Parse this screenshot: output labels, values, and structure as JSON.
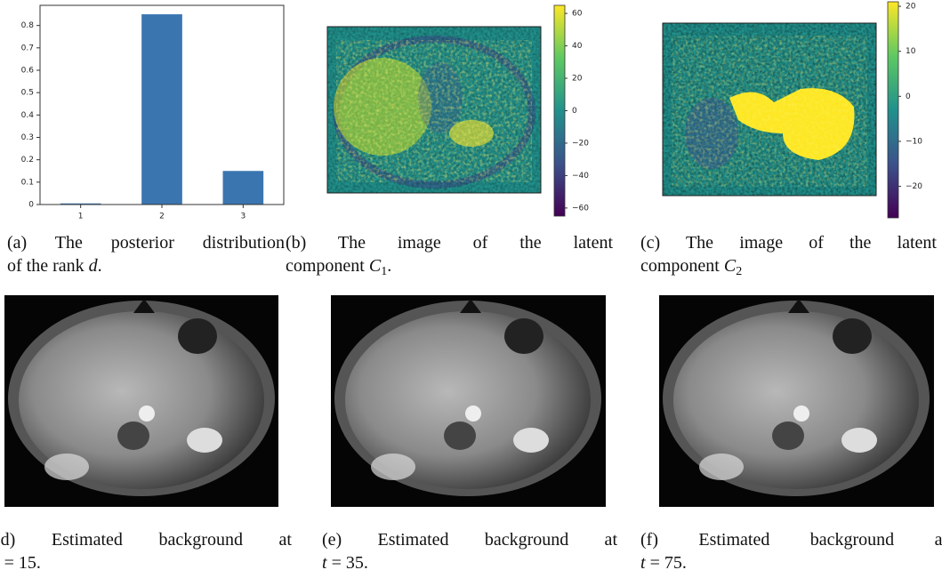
{
  "chart_data": [
    {
      "type": "bar",
      "categories": [
        "1",
        "2",
        "3"
      ],
      "values": [
        0.005,
        0.85,
        0.15
      ],
      "color": "#3a75b0",
      "ylim": [
        0,
        0.89
      ],
      "yticks": [
        0.0,
        0.1,
        0.2,
        0.3,
        0.4,
        0.5,
        0.6,
        0.7,
        0.8
      ]
    },
    {
      "type": "heatmap",
      "colormap": "viridis",
      "ylim": [
        -65,
        65
      ],
      "yticks": [
        60,
        40,
        20,
        0,
        {
          "value": -20,
          "label": "−20"
        },
        {
          "value": -40,
          "label": "−40"
        },
        {
          "value": -60,
          "label": "−60"
        }
      ]
    },
    {
      "type": "heatmap",
      "colormap": "viridis",
      "ylim": [
        -27,
        21
      ],
      "yticks": [
        20,
        10,
        0,
        {
          "value": -10,
          "label": "−10"
        },
        {
          "value": -20,
          "label": "−20"
        }
      ]
    }
  ],
  "captions": [
    {
      "lines": [
        [
          {
            "text": "(a) The posterior distribution"
          }
        ],
        [
          {
            "text": "of the rank"
          },
          {
            "text": "d",
            "style": "math"
          },
          {
            "text": ".",
            "style": "punct"
          }
        ]
      ]
    },
    {
      "lines": [
        [
          {
            "text": "(b) The image of the latent"
          }
        ],
        [
          {
            "text": "component"
          },
          {
            "text": "C",
            "style": "math"
          },
          {
            "text": "1",
            "style": "sub"
          },
          {
            "text": ".",
            "style": "punct"
          }
        ]
      ]
    },
    {
      "lines": [
        [
          {
            "text": "(c) The image of the latent"
          }
        ],
        [
          {
            "text": "component"
          },
          {
            "text": "C",
            "style": "math"
          },
          {
            "text": "2",
            "style": "sub"
          }
        ]
      ]
    },
    {
      "lines": [
        [
          {
            "text": "(d) Estimated background at"
          }
        ],
        [
          {
            "text": "t",
            "style": "math"
          },
          {
            "text": "= 15",
            "style": "rel"
          },
          {
            "text": ".",
            "style": "punct"
          }
        ]
      ]
    },
    {
      "lines": [
        [
          {
            "text": "(e) Estimated background at"
          }
        ],
        [
          {
            "text": "t",
            "style": "math"
          },
          {
            "text": "= 35",
            "style": "rel"
          },
          {
            "text": ".",
            "style": "punct"
          }
        ]
      ]
    },
    {
      "lines": [
        [
          {
            "text": "(f) Estimated background at"
          }
        ],
        [
          {
            "text": "t",
            "style": "math"
          },
          {
            "text": "= 75",
            "style": "rel"
          },
          {
            "text": ".",
            "style": "punct"
          }
        ]
      ]
    }
  ]
}
